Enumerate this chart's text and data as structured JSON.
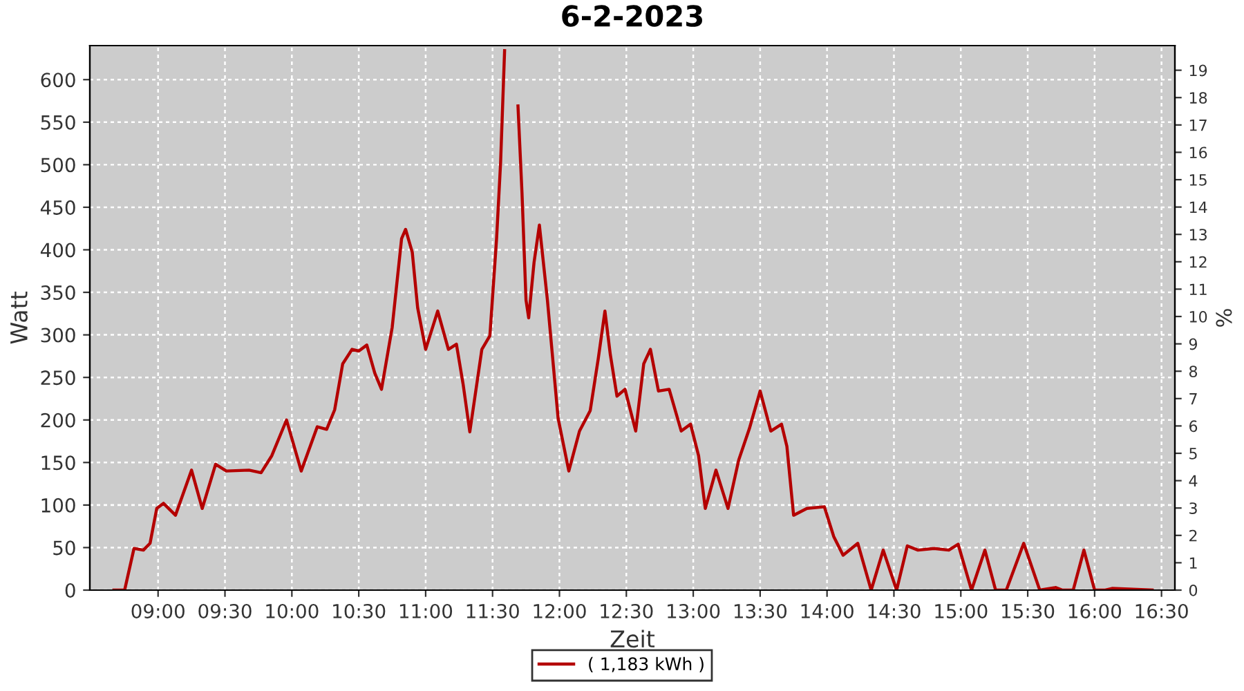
{
  "chart_data": {
    "type": "line",
    "title": "6-2-2023",
    "xlabel": "Zeit",
    "ylabel": "Watt",
    "y2label": "%",
    "x": [
      8.67,
      8.75,
      8.82,
      8.89,
      8.94,
      8.99,
      9.04,
      9.13,
      9.25,
      9.33,
      9.43,
      9.51,
      9.68,
      9.77,
      9.85,
      9.96,
      10.07,
      10.19,
      10.26,
      10.32,
      10.38,
      10.45,
      10.5,
      10.56,
      10.62,
      10.67,
      10.75,
      10.82,
      10.85,
      10.9,
      10.94,
      11.0,
      11.09,
      11.17,
      11.23,
      11.28,
      11.33,
      11.42,
      11.48,
      11.53,
      11.56,
      11.59,
      11.62,
      11.66,
      11.69,
      11.72,
      11.75,
      11.77,
      11.81,
      11.85,
      11.91,
      11.99,
      12.07,
      12.15,
      12.23,
      12.29,
      12.34,
      12.38,
      12.43,
      12.49,
      12.57,
      12.63,
      12.68,
      12.74,
      12.82,
      12.91,
      12.98,
      13.04,
      13.09,
      13.17,
      13.26,
      13.34,
      13.42,
      13.5,
      13.58,
      13.66,
      13.7,
      13.75,
      13.85,
      13.98,
      14.05,
      14.12,
      14.23,
      14.33,
      14.42,
      14.52,
      14.6,
      14.68,
      14.8,
      14.91,
      14.98,
      15.08,
      15.18,
      15.26,
      15.34,
      15.47,
      15.59,
      15.71,
      15.76,
      15.84,
      15.92,
      16.0,
      16.08,
      16.13,
      16.43
    ],
    "series": [
      {
        "name": "( 1,183 kWh )",
        "color": "#b40000",
        "values": [
          0,
          0,
          49,
          47,
          55,
          96,
          102,
          88,
          141,
          96,
          148,
          140,
          141,
          138,
          158,
          200,
          140,
          192,
          189,
          212,
          266,
          283,
          281,
          288,
          255,
          236,
          309,
          413,
          424,
          397,
          332,
          283,
          328,
          283,
          289,
          242,
          186,
          283,
          299,
          413,
          502,
          634,
          null,
          null,
          569,
          467,
          341,
          320,
          385,
          429,
          341,
          202,
          140,
          187,
          211,
          272,
          328,
          277,
          228,
          236,
          187,
          266,
          283,
          234,
          236,
          187,
          195,
          158,
          96,
          141,
          96,
          153,
          190,
          234,
          187,
          195,
          169,
          88,
          96,
          98,
          63,
          41,
          55,
          0,
          47,
          0,
          52,
          47,
          49,
          47,
          54,
          0,
          47,
          0,
          0,
          55,
          0,
          3,
          0,
          0,
          47,
          0,
          0,
          2,
          0
        ]
      }
    ],
    "xlim": [
      8.49,
      16.6
    ],
    "xticks": [
      {
        "value": 9,
        "label": "09:00"
      },
      {
        "value": 9.5,
        "label": "09:30"
      },
      {
        "value": 10,
        "label": "10:00"
      },
      {
        "value": 10.5,
        "label": "10:30"
      },
      {
        "value": 11,
        "label": "11:00"
      },
      {
        "value": 11.5,
        "label": "11:30"
      },
      {
        "value": 12,
        "label": "12:00"
      },
      {
        "value": 12.5,
        "label": "12:30"
      },
      {
        "value": 13,
        "label": "13:00"
      },
      {
        "value": 13.5,
        "label": "13:30"
      },
      {
        "value": 14,
        "label": "14:00"
      },
      {
        "value": 14.5,
        "label": "14:30"
      },
      {
        "value": 15,
        "label": "15:00"
      },
      {
        "value": 15.5,
        "label": "15:30"
      },
      {
        "value": 16,
        "label": "16:00"
      },
      {
        "value": 16.5,
        "label": "16:30"
      }
    ],
    "ylim": [
      0,
      640
    ],
    "yticks": [
      0,
      50,
      100,
      150,
      200,
      250,
      300,
      350,
      400,
      450,
      500,
      550,
      600
    ],
    "y2lim": [
      0,
      19.9
    ],
    "y2ticks": [
      0,
      1,
      2,
      3,
      4,
      5,
      6,
      7,
      8,
      9,
      10,
      11,
      12,
      13,
      14,
      15,
      16,
      17,
      18,
      19
    ],
    "grid": true,
    "legend": "bottom",
    "marker": "none",
    "line_style": "solid"
  }
}
